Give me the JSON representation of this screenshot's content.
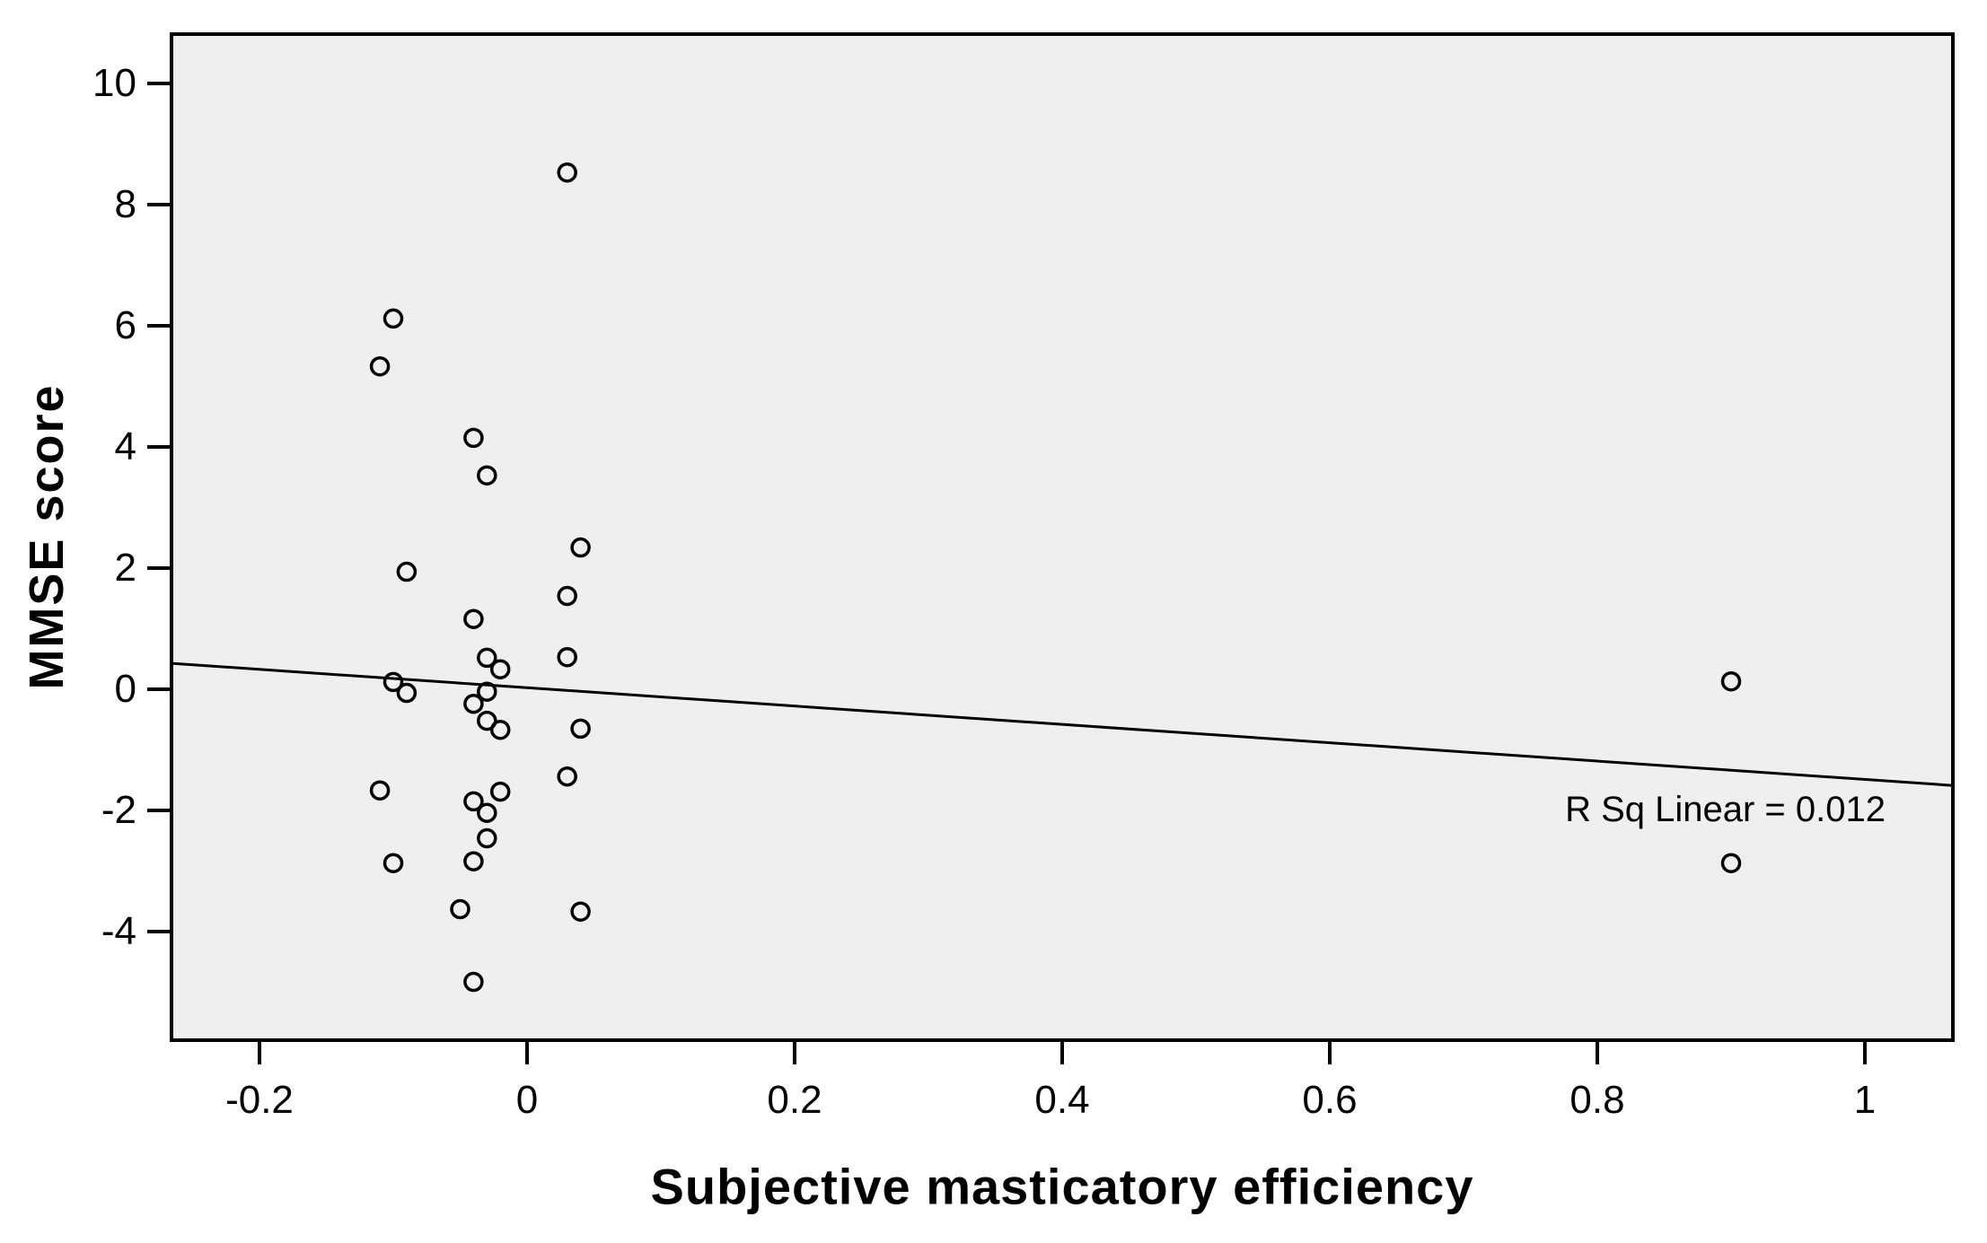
{
  "chart_data": {
    "type": "scatter",
    "title": "",
    "xlabel": "Subjective masticatory efficiency",
    "ylabel": "MMSE score",
    "annotation": "R Sq Linear = 0.012",
    "grid": false,
    "plot_background_color": "#efefef",
    "marker": {
      "shape": "open-circle",
      "color": "#000000"
    },
    "xlim": [
      -0.267,
      1.067
    ],
    "ylim": [
      -5.8,
      10.8
    ],
    "x_ticks": {
      "values": [
        -0.2,
        0,
        0.2,
        0.4,
        0.6,
        0.8,
        1
      ],
      "labels": [
        "-0.2",
        "0",
        "0.2",
        "0.4",
        "0.6",
        "0.8",
        "1"
      ]
    },
    "y_ticks": {
      "values": [
        10,
        8,
        6,
        4,
        2,
        0,
        -2,
        -4
      ],
      "labels": [
        "10",
        "8",
        "6",
        "4",
        "2",
        "0",
        "-2",
        "-4"
      ]
    },
    "points": [
      [
        0.03,
        8.53
      ],
      [
        -0.1,
        6.12
      ],
      [
        -0.11,
        5.33
      ],
      [
        -0.04,
        4.15
      ],
      [
        -0.03,
        3.53
      ],
      [
        0.04,
        2.34
      ],
      [
        -0.09,
        1.94
      ],
      [
        0.03,
        1.54
      ],
      [
        -0.04,
        1.16
      ],
      [
        -0.03,
        0.52
      ],
      [
        0.03,
        0.53
      ],
      [
        -0.02,
        0.33
      ],
      [
        -0.1,
        0.12
      ],
      [
        -0.09,
        -0.06
      ],
      [
        -0.03,
        -0.04
      ],
      [
        -0.04,
        -0.24
      ],
      [
        -0.03,
        -0.52
      ],
      [
        -0.02,
        -0.67
      ],
      [
        0.04,
        -0.65
      ],
      [
        0.03,
        -1.44
      ],
      [
        -0.11,
        -1.67
      ],
      [
        -0.02,
        -1.69
      ],
      [
        -0.04,
        -1.85
      ],
      [
        -0.03,
        -2.04
      ],
      [
        -0.03,
        -2.46
      ],
      [
        -0.04,
        -2.84
      ],
      [
        -0.1,
        -2.87
      ],
      [
        -0.05,
        -3.63
      ],
      [
        0.04,
        -3.67
      ],
      [
        -0.04,
        -4.83
      ],
      [
        0.9,
        0.13
      ],
      [
        0.9,
        -2.87
      ]
    ],
    "regression_line": {
      "x1": -0.267,
      "y1": 0.43,
      "x2": 1.067,
      "y2": -1.59,
      "r_squared": 0.012
    }
  }
}
